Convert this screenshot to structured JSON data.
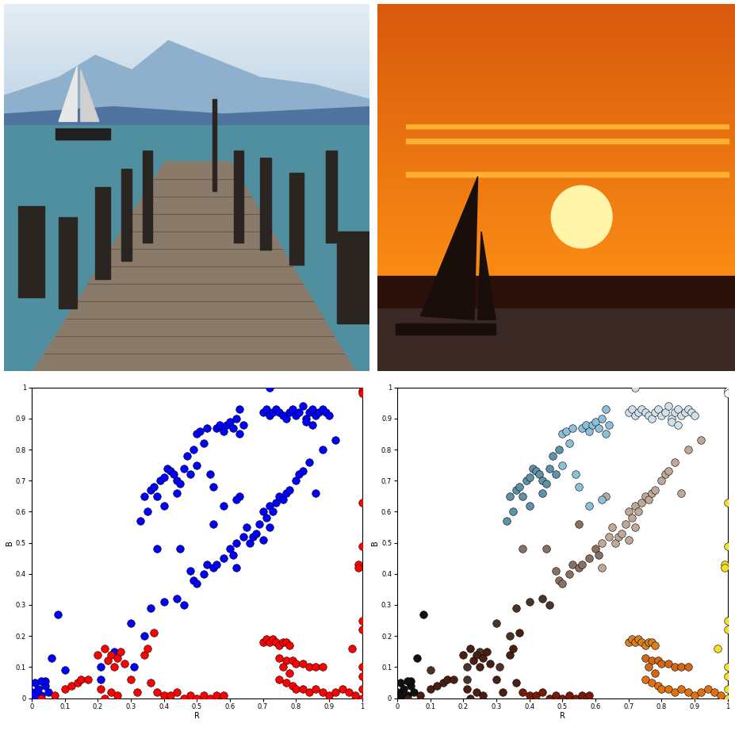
{
  "chart_data": [
    {
      "type": "scatter",
      "x_label": "R",
      "y_label": "B",
      "marker": "o",
      "xlim": [
        0,
        1
      ],
      "ylim": [
        0,
        1
      ],
      "xticks": [
        0,
        0.1,
        0.2,
        0.3,
        0.4,
        0.5,
        0.6,
        0.7,
        0.8,
        0.9,
        1
      ],
      "yticks": [
        0,
        0.1,
        0.2,
        0.3,
        0.4,
        0.5,
        0.6,
        0.7,
        0.8,
        0.9,
        1
      ],
      "series": [
        {
          "color": "#0000ff",
          "x": [
            0,
            0.01,
            0.02,
            0.03,
            0.04,
            0.05,
            0.02,
            0.04,
            0.01,
            0.03,
            0.06,
            0.08
          ],
          "values": [
            0.02,
            0.05,
            0.03,
            0.01,
            0.04,
            0.02,
            0,
            0.055,
            0.01,
            0.055,
            0.13,
            0.27
          ]
        },
        {
          "color": "#0000ff",
          "x": [
            0.1,
            0.21,
            0.21,
            0.25,
            0.3,
            0.31,
            0.34,
            0.36,
            0.4,
            0.44,
            0.46
          ],
          "values": [
            0.09,
            0.1,
            0.06,
            0.15,
            0.24,
            0.1,
            0.2,
            0.29,
            0.31,
            0.32,
            0.3
          ]
        },
        {
          "color": "#0000ff",
          "x": [
            0.38,
            0.45,
            0.48,
            0.49,
            0.5,
            0.52,
            0.53,
            0.55,
            0.56,
            0.58,
            0.6,
            0.61,
            0.55
          ],
          "values": [
            0.48,
            0.48,
            0.41,
            0.38,
            0.37,
            0.4,
            0.43,
            0.42,
            0.43,
            0.45,
            0.48,
            0.46,
            0.56
          ]
        },
        {
          "color": "#0000ff",
          "x": [
            0.62,
            0.62,
            0.64,
            0.65,
            0.66,
            0.67,
            0.68,
            0.69,
            0.7,
            0.71,
            0.72,
            0.73,
            0.74,
            0.75,
            0.76,
            0.77,
            0.78,
            0.8,
            0.81,
            0.82,
            0.84,
            0.86,
            0.88,
            0.92,
            0.63,
            0.7,
            0.72
          ],
          "values": [
            0.42,
            0.5,
            0.52,
            0.55,
            0.5,
            0.52,
            0.53,
            0.56,
            0.6,
            0.58,
            0.62,
            0.6,
            0.63,
            0.65,
            0.64,
            0.66,
            0.67,
            0.7,
            0.72,
            0.73,
            0.76,
            0.66,
            0.8,
            0.83,
            0.65,
            0.51,
            0.55
          ]
        },
        {
          "color": "#0000ff",
          "x": [
            0.33,
            0.34,
            0.35,
            0.36,
            0.37,
            0.38,
            0.39,
            0.4,
            0.4,
            0.41,
            0.42,
            0.43,
            0.44,
            0.45,
            0.44,
            0.46,
            0.47,
            0.48,
            0.49
          ],
          "values": [
            0.57,
            0.65,
            0.6,
            0.67,
            0.68,
            0.65,
            0.7,
            0.71,
            0.62,
            0.74,
            0.73,
            0.72,
            0.7,
            0.69,
            0.66,
            0.74,
            0.78,
            0.72,
            0.8
          ]
        },
        {
          "color": "#0000ff",
          "x": [
            0.5,
            0.5,
            0.51,
            0.52,
            0.53,
            0.54,
            0.55,
            0.56,
            0.57,
            0.58,
            0.59,
            0.6,
            0.61,
            0.62,
            0.63,
            0.64,
            0.63,
            0.58,
            0.62
          ],
          "values": [
            0.75,
            0.85,
            0.86,
            0.82,
            0.87,
            0.72,
            0.68,
            0.87,
            0.88,
            0.86,
            0.88,
            0.89,
            0.87,
            0.9,
            0.93,
            0.88,
            0.85,
            0.62,
            0.64
          ]
        },
        {
          "color": "#0000ff",
          "x": [
            0.72,
            0.7,
            0.71,
            0.72,
            0.73,
            0.74,
            0.75,
            0.76,
            0.77,
            0.78,
            0.79,
            0.8,
            0.81,
            0.82,
            0.83,
            0.84,
            0.85,
            0.86,
            0.87,
            0.88,
            0.89,
            0.9,
            0.83,
            0.85
          ],
          "values": [
            1,
            0.92,
            0.93,
            0.91,
            0.92,
            0.93,
            0.92,
            0.91,
            0.9,
            0.92,
            0.93,
            0.91,
            0.92,
            0.94,
            0.9,
            0.92,
            0.93,
            0.91,
            0.92,
            0.93,
            0.92,
            0.91,
            0.89,
            0.88
          ]
        },
        {
          "color": "#ff0000",
          "x": [
            0.03,
            0.07,
            0.1,
            0.12,
            0.14,
            0.15,
            0.17,
            0.2,
            0.21,
            0.22,
            0.23,
            0.24,
            0.25,
            0.26,
            0.27,
            0.28,
            0.22,
            0.24,
            0.26,
            0.3,
            0.32,
            0.34,
            0.35,
            0.37,
            0.36
          ],
          "values": [
            0,
            0.01,
            0.03,
            0.04,
            0.05,
            0.06,
            0.06,
            0.14,
            0.03,
            0.16,
            0.12,
            0.14,
            0.1,
            0.13,
            0.15,
            0.11,
            0,
            0.02,
            0.01,
            0.06,
            0.02,
            0.14,
            0.16,
            0.21,
            0.05
          ]
        },
        {
          "color": "#ff0000",
          "x": [
            0.38,
            0.4,
            0.42,
            0.44,
            0.46,
            0.48,
            0.5,
            0.52,
            0.54,
            0.56,
            0.58
          ],
          "values": [
            0.02,
            0.01,
            0.01,
            0.02,
            0,
            0.01,
            0,
            0.01,
            0,
            0.01,
            0.01
          ]
        },
        {
          "color": "#ff0000",
          "x": [
            0.7,
            0.71,
            0.72,
            0.73,
            0.74,
            0.75,
            0.76,
            0.77,
            0.78
          ],
          "values": [
            0.18,
            0.19,
            0.18,
            0.19,
            0.18,
            0.17,
            0.18,
            0.18,
            0.17
          ]
        },
        {
          "color": "#ff0000",
          "x": [
            0.75,
            0.77,
            0.79,
            0.8,
            0.82,
            0.84,
            0.86,
            0.88,
            0.76,
            0.78
          ],
          "values": [
            0.13,
            0.12,
            0.12,
            0.11,
            0.11,
            0.1,
            0.1,
            0.1,
            0.1,
            0.08
          ]
        },
        {
          "color": "#ff0000",
          "x": [
            0.75,
            0.77,
            0.79,
            0.8,
            0.82,
            0.84,
            0.86,
            0.88,
            0.9,
            0.92,
            0.94,
            0.96,
            0.98
          ],
          "values": [
            0.06,
            0.05,
            0.04,
            0.03,
            0.03,
            0.02,
            0.03,
            0.02,
            0.01,
            0.02,
            0.03,
            0.02,
            0.01
          ]
        },
        {
          "color": "#ff0000",
          "x": [
            0.97,
            0.99,
            0.99,
            1,
            1,
            1,
            1,
            1,
            1,
            1,
            1
          ],
          "values": [
            0.16,
            0.43,
            0.42,
            0.63,
            0.49,
            0.25,
            0.22,
            0.1,
            0.07,
            0.03,
            0
          ]
        },
        {
          "color": "#ff0000",
          "x": [
            1,
            1
          ],
          "values": [
            0.99,
            0.98
          ]
        }
      ]
    },
    {
      "type": "scatter",
      "x_label": "R",
      "y_label": "B",
      "marker": "o",
      "xlim": [
        0,
        1
      ],
      "ylim": [
        0,
        1
      ],
      "xticks": [
        0,
        0.1,
        0.2,
        0.3,
        0.4,
        0.5,
        0.6,
        0.7,
        0.8,
        0.9,
        1
      ],
      "yticks": [
        0,
        0.1,
        0.2,
        0.3,
        0.4,
        0.5,
        0.6,
        0.7,
        0.8,
        0.9,
        1
      ],
      "series": [
        {
          "color": "#101010",
          "x": [
            0,
            0.01,
            0.02,
            0.03,
            0.04,
            0.05,
            0.02,
            0.04,
            0.01,
            0.03,
            0.06,
            0.08
          ],
          "values": [
            0.02,
            0.05,
            0.03,
            0.01,
            0.04,
            0.02,
            0,
            0.055,
            0.01,
            0.055,
            0.13,
            0.27
          ]
        },
        {
          "color": "#4a3428",
          "x": [
            0.1,
            0.21,
            0.21,
            0.25,
            0.3,
            0.31,
            0.34,
            0.36,
            0.4,
            0.44,
            0.46
          ],
          "values": [
            0.09,
            0.1,
            0.06,
            0.15,
            0.24,
            0.1,
            0.2,
            0.29,
            0.31,
            0.32,
            0.3
          ]
        },
        {
          "color": "#8a7060",
          "x": [
            0.38,
            0.45,
            0.48,
            0.49,
            0.5,
            0.52,
            0.53,
            0.55,
            0.56,
            0.58,
            0.6,
            0.61,
            0.55
          ],
          "values": [
            0.48,
            0.48,
            0.41,
            0.38,
            0.37,
            0.4,
            0.43,
            0.42,
            0.43,
            0.45,
            0.48,
            0.46,
            0.56
          ]
        },
        {
          "color": "#c0a898",
          "x": [
            0.62,
            0.62,
            0.64,
            0.65,
            0.66,
            0.67,
            0.68,
            0.69,
            0.7,
            0.71,
            0.72,
            0.73,
            0.74,
            0.75,
            0.76,
            0.77,
            0.78,
            0.8,
            0.81,
            0.82,
            0.84,
            0.86,
            0.88,
            0.92,
            0.63,
            0.7,
            0.72
          ],
          "values": [
            0.42,
            0.5,
            0.52,
            0.55,
            0.5,
            0.52,
            0.53,
            0.56,
            0.6,
            0.58,
            0.62,
            0.6,
            0.63,
            0.65,
            0.64,
            0.66,
            0.67,
            0.7,
            0.72,
            0.73,
            0.76,
            0.66,
            0.8,
            0.83,
            0.65,
            0.51,
            0.55
          ]
        },
        {
          "color": "#5e92a8",
          "x": [
            0.33,
            0.34,
            0.35,
            0.36,
            0.37,
            0.38,
            0.39,
            0.4,
            0.4,
            0.41,
            0.42,
            0.43,
            0.44,
            0.45,
            0.44,
            0.46,
            0.47,
            0.48,
            0.49
          ],
          "values": [
            0.57,
            0.65,
            0.6,
            0.67,
            0.68,
            0.65,
            0.7,
            0.71,
            0.62,
            0.74,
            0.73,
            0.72,
            0.7,
            0.69,
            0.66,
            0.74,
            0.78,
            0.72,
            0.8
          ]
        },
        {
          "color": "#8cc0d8",
          "x": [
            0.5,
            0.5,
            0.51,
            0.52,
            0.53,
            0.54,
            0.55,
            0.56,
            0.57,
            0.58,
            0.59,
            0.6,
            0.61,
            0.62,
            0.63,
            0.64,
            0.63,
            0.58,
            0.62
          ],
          "values": [
            0.75,
            0.85,
            0.86,
            0.82,
            0.87,
            0.72,
            0.68,
            0.87,
            0.88,
            0.86,
            0.88,
            0.89,
            0.87,
            0.9,
            0.93,
            0.88,
            0.85,
            0.62,
            0.64
          ]
        },
        {
          "color": "#cfe0ea",
          "x": [
            0.72,
            0.7,
            0.71,
            0.72,
            0.73,
            0.74,
            0.75,
            0.76,
            0.77,
            0.78,
            0.79,
            0.8,
            0.81,
            0.82,
            0.83,
            0.84,
            0.85,
            0.86,
            0.87,
            0.88,
            0.89,
            0.9,
            0.83,
            0.85
          ],
          "values": [
            1,
            0.92,
            0.93,
            0.91,
            0.92,
            0.93,
            0.92,
            0.91,
            0.9,
            0.92,
            0.93,
            0.91,
            0.92,
            0.94,
            0.9,
            0.92,
            0.93,
            0.91,
            0.92,
            0.93,
            0.92,
            0.91,
            0.89,
            0.88
          ]
        },
        {
          "color": "#4a1e10",
          "x": [
            0.03,
            0.07,
            0.1,
            0.12,
            0.14,
            0.15,
            0.17,
            0.2,
            0.21,
            0.22,
            0.23,
            0.24,
            0.25,
            0.26,
            0.27,
            0.28,
            0.22,
            0.24,
            0.26,
            0.3,
            0.32,
            0.34,
            0.35,
            0.37,
            0.36
          ],
          "values": [
            0,
            0.01,
            0.03,
            0.04,
            0.05,
            0.06,
            0.06,
            0.14,
            0.03,
            0.16,
            0.12,
            0.14,
            0.1,
            0.13,
            0.15,
            0.11,
            0,
            0.02,
            0.01,
            0.06,
            0.02,
            0.14,
            0.16,
            0.21,
            0.05
          ]
        },
        {
          "color": "#7a1a08",
          "x": [
            0.38,
            0.4,
            0.42,
            0.44,
            0.46,
            0.48,
            0.5,
            0.52,
            0.54,
            0.56,
            0.58
          ],
          "values": [
            0.02,
            0.01,
            0.01,
            0.02,
            0,
            0.01,
            0,
            0.01,
            0,
            0.01,
            0.01
          ]
        },
        {
          "color": "#d88020",
          "x": [
            0.7,
            0.71,
            0.72,
            0.73,
            0.74,
            0.75,
            0.76,
            0.77,
            0.78
          ],
          "values": [
            0.18,
            0.19,
            0.18,
            0.19,
            0.18,
            0.17,
            0.18,
            0.18,
            0.17
          ]
        },
        {
          "color": "#d06818",
          "x": [
            0.75,
            0.77,
            0.79,
            0.8,
            0.82,
            0.84,
            0.86,
            0.88,
            0.76,
            0.78
          ],
          "values": [
            0.13,
            0.12,
            0.12,
            0.11,
            0.11,
            0.1,
            0.1,
            0.1,
            0.1,
            0.08
          ]
        },
        {
          "color": "#e07010",
          "x": [
            0.75,
            0.77,
            0.79,
            0.8,
            0.82,
            0.84,
            0.86,
            0.88,
            0.9,
            0.92,
            0.94,
            0.96,
            0.98
          ],
          "values": [
            0.06,
            0.05,
            0.04,
            0.03,
            0.03,
            0.02,
            0.03,
            0.02,
            0.01,
            0.02,
            0.03,
            0.02,
            0.01
          ]
        },
        {
          "color": "#f4e020",
          "x": [
            0.97,
            0.99,
            0.99,
            1,
            1,
            1,
            1,
            1,
            1,
            1,
            1
          ],
          "values": [
            0.16,
            0.43,
            0.42,
            0.63,
            0.49,
            0.25,
            0.22,
            0.1,
            0.07,
            0.03,
            0
          ]
        },
        {
          "color": "#ffffff",
          "x": [
            1,
            1
          ],
          "values": [
            0.99,
            0.98
          ]
        }
      ]
    }
  ]
}
